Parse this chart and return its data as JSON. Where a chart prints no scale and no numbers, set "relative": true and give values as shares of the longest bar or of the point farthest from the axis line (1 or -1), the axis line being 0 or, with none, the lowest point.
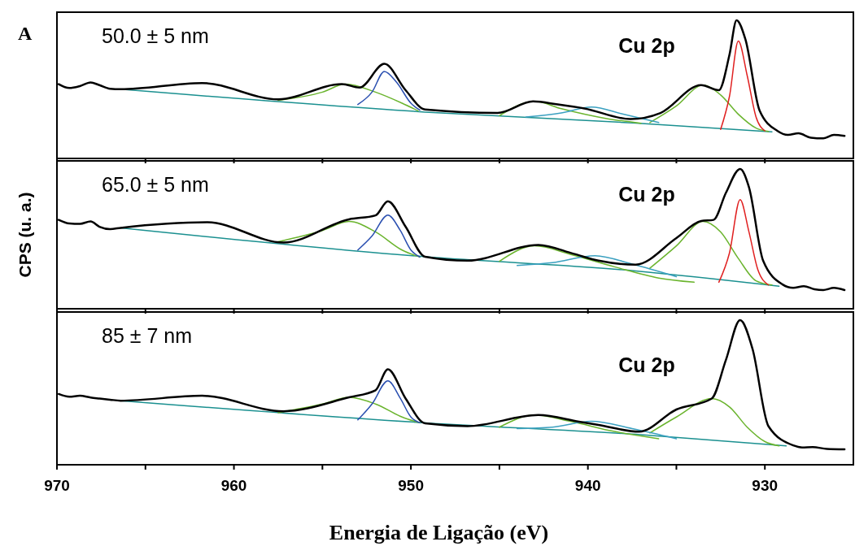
{
  "chart_data": [
    {
      "type": "line",
      "title": "A",
      "relative": true,
      "xlim": [
        970,
        925
      ],
      "xticks": [
        {
          "value": 970,
          "label": null
        },
        {
          "value": 965,
          "label": null
        },
        {
          "value": 960,
          "label": null
        },
        {
          "value": 955,
          "label": null
        },
        {
          "value": 950,
          "label": null
        },
        {
          "value": 945,
          "label": null
        },
        {
          "value": 940,
          "label": null
        },
        {
          "value": 935,
          "label": null
        },
        {
          "value": 930,
          "label": null
        }
      ],
      "tick_labels": false,
      "annotations": [
        "50.0 ± 5 nm",
        "Cu 2p"
      ],
      "series": [
        {
          "color": "#1b9090",
          "x": [
            966.4,
            949.2,
            937.3,
            929.6
          ],
          "values": [
            0.501,
            0.336,
            0.256,
            0.193
          ]
        },
        {
          "color": "#6ab42d",
          "x": [
            957.5,
            955,
            953.7,
            952,
            950.5,
            949.6
          ],
          "values": [
            0.42,
            0.48,
            0.538,
            0.48,
            0.4,
            0.345
          ]
        },
        {
          "color": "#6ab42d",
          "x": [
            945,
            943,
            941.5,
            939,
            937
          ],
          "values": [
            0.31,
            0.413,
            0.36,
            0.29,
            0.255
          ]
        },
        {
          "color": "#6ab42d",
          "x": [
            936.5,
            935,
            933.5,
            932.5,
            931.5,
            930.5,
            929.8
          ],
          "values": [
            0.26,
            0.38,
            0.531,
            0.46,
            0.32,
            0.22,
            0.195
          ]
        },
        {
          "color": "#2a4fb0",
          "x": [
            953,
            952.2,
            951.5,
            950.8,
            950,
            949.5
          ],
          "values": [
            0.39,
            0.48,
            0.63,
            0.55,
            0.4,
            0.35
          ]
        },
        {
          "color": "#3aa0c0",
          "x": [
            943.5,
            941.5,
            939.8,
            938,
            936
          ],
          "values": [
            0.3,
            0.33,
            0.372,
            0.32,
            0.26
          ]
        },
        {
          "color": "#e02020",
          "x": [
            932.5,
            932,
            931.5,
            931,
            930.5,
            930
          ],
          "values": [
            0.21,
            0.45,
            0.85,
            0.6,
            0.3,
            0.2
          ]
        },
        {
          "color": "#000000",
          "x": [
            969.9,
            969.3,
            968.7,
            968.1,
            967.6,
            967,
            966.4,
            961.8,
            957.5,
            953.9,
            952.9,
            951.5,
            950.3,
            949.2,
            945.1,
            943.1,
            941.7,
            940.2,
            937.6,
            935.9,
            933.6,
            932.6,
            932,
            931.6,
            931.1,
            930.3,
            929.3,
            928.7,
            928.1,
            927.4,
            926.7,
            926.1,
            925.5
          ],
          "values": [
            0.538,
            0.51,
            0.524,
            0.55,
            0.531,
            0.505,
            0.501,
            0.546,
            0.428,
            0.538,
            0.513,
            0.685,
            0.494,
            0.354,
            0.329,
            0.413,
            0.391,
            0.362,
            0.285,
            0.329,
            0.531,
            0.494,
            0.751,
            1,
            0.862,
            0.347,
            0.2,
            0.17,
            0.182,
            0.15,
            0.145,
            0.17,
            0.163
          ]
        }
      ]
    },
    {
      "type": "line",
      "relative": true,
      "ylabel": "CPS (u. a.)",
      "xlim": [
        970,
        925
      ],
      "xticks": [
        {
          "value": 970,
          "label": null
        },
        {
          "value": 965,
          "label": null
        },
        {
          "value": 960,
          "label": null
        },
        {
          "value": 955,
          "label": null
        },
        {
          "value": 950,
          "label": null
        },
        {
          "value": 945,
          "label": null
        },
        {
          "value": 940,
          "label": null
        },
        {
          "value": 935,
          "label": null
        },
        {
          "value": 930,
          "label": null
        }
      ],
      "tick_labels": false,
      "annotations": [
        "65.0 ± 5 nm",
        "Cu 2p"
      ],
      "series": [
        {
          "color": "#1b9090",
          "x": [
            966.4,
            949.2,
            937.3,
            929.2
          ],
          "values": [
            0.579,
            0.372,
            0.271,
            0.162
          ]
        },
        {
          "color": "#6ab42d",
          "x": [
            957.5,
            955,
            953.5,
            952,
            950.5,
            949.5
          ],
          "values": [
            0.48,
            0.56,
            0.625,
            0.55,
            0.42,
            0.37
          ]
        },
        {
          "color": "#6ab42d",
          "x": [
            945,
            943,
            941,
            938.5,
            936,
            934
          ],
          "values": [
            0.34,
            0.45,
            0.39,
            0.3,
            0.22,
            0.19
          ]
        },
        {
          "color": "#6ab42d",
          "x": [
            936.5,
            935,
            933.5,
            932.5,
            931.5,
            930.5,
            929.6
          ],
          "values": [
            0.29,
            0.45,
            0.625,
            0.55,
            0.36,
            0.2,
            0.17
          ]
        },
        {
          "color": "#2a4fb0",
          "x": [
            953,
            952.2,
            951.3,
            950.6,
            950,
            949.5
          ],
          "values": [
            0.42,
            0.52,
            0.67,
            0.56,
            0.42,
            0.37
          ]
        },
        {
          "color": "#3aa0c0",
          "x": [
            944,
            942,
            939.6,
            937.5,
            935
          ],
          "values": [
            0.31,
            0.33,
            0.38,
            0.32,
            0.23
          ]
        },
        {
          "color": "#e02020",
          "x": [
            932.6,
            932,
            931.4,
            930.9,
            930.4,
            929.8
          ],
          "values": [
            0.19,
            0.4,
            0.78,
            0.55,
            0.28,
            0.17
          ]
        },
        {
          "color": "#000000",
          "x": [
            969.9,
            969.3,
            968.7,
            968.1,
            967.6,
            967,
            966.4,
            961.5,
            957.2,
            953.5,
            952,
            951.3,
            950.3,
            949.2,
            946.8,
            942.8,
            940.8,
            939.4,
            937.3,
            935,
            933.6,
            932.9,
            932.2,
            931.4,
            930.9,
            930.1,
            929,
            928.4,
            927.8,
            927.2,
            926.7,
            926.1,
            925.5
          ],
          "values": [
            0.636,
            0.61,
            0.607,
            0.625,
            0.587,
            0.57,
            0.579,
            0.619,
            0.474,
            0.64,
            0.668,
            0.769,
            0.587,
            0.372,
            0.344,
            0.457,
            0.393,
            0.344,
            0.316,
            0.506,
            0.628,
            0.636,
            0.83,
            1,
            0.87,
            0.344,
            0.174,
            0.15,
            0.162,
            0.14,
            0.134,
            0.15,
            0.134
          ]
        }
      ]
    },
    {
      "type": "line",
      "relative": true,
      "xlabel": "Energia de Ligação (eV)",
      "xlim": [
        970,
        925
      ],
      "xticks": [
        970,
        {
          "value": 965,
          "label": null
        },
        960,
        {
          "value": 955,
          "label": null
        },
        950,
        {
          "value": 945,
          "label": null
        },
        940,
        {
          "value": 935,
          "label": null
        },
        930
      ],
      "tick_labels": "x",
      "annotations": [
        "85 ± 7 nm",
        "Cu 2p"
      ],
      "series": [
        {
          "color": "#1b9090",
          "x": [
            966.4,
            949.2,
            937.3,
            928.8
          ],
          "values": [
            0.443,
            0.29,
            0.21,
            0.13
          ]
        },
        {
          "color": "#6ab42d",
          "x": [
            957.5,
            955,
            953.5,
            952,
            950.5,
            949.5
          ],
          "values": [
            0.36,
            0.42,
            0.466,
            0.42,
            0.33,
            0.29
          ]
        },
        {
          "color": "#6ab42d",
          "x": [
            945,
            943,
            941,
            938.5,
            936
          ],
          "values": [
            0.26,
            0.344,
            0.3,
            0.23,
            0.18
          ]
        },
        {
          "color": "#6ab42d",
          "x": [
            936.5,
            935,
            933,
            932,
            931,
            930,
            929.2
          ],
          "values": [
            0.22,
            0.33,
            0.458,
            0.4,
            0.26,
            0.16,
            0.13
          ]
        },
        {
          "color": "#2a4fb0",
          "x": [
            953,
            952.2,
            951.3,
            950.6,
            950,
            949.5
          ],
          "values": [
            0.31,
            0.42,
            0.58,
            0.46,
            0.33,
            0.29
          ]
        },
        {
          "color": "#3aa0c0",
          "x": [
            944,
            942,
            939.8,
            937.5,
            935
          ],
          "values": [
            0.25,
            0.26,
            0.3,
            0.25,
            0.18
          ]
        },
        {
          "color": "#000000",
          "x": [
            969.9,
            969.3,
            968.7,
            968.1,
            967.6,
            967,
            966.4,
            961.8,
            957.2,
            953.5,
            952,
            951.3,
            950.3,
            949.2,
            946.8,
            942.8,
            940.5,
            939.4,
            937.1,
            935,
            933,
            932.2,
            931.4,
            930.7,
            929.8,
            928.4,
            927.9,
            927.3,
            926.5,
            925.5
          ],
          "values": [
            0.489,
            0.47,
            0.477,
            0.465,
            0.458,
            0.45,
            0.443,
            0.477,
            0.37,
            0.466,
            0.515,
            0.66,
            0.458,
            0.286,
            0.267,
            0.344,
            0.298,
            0.275,
            0.229,
            0.382,
            0.458,
            0.725,
            1,
            0.802,
            0.267,
            0.134,
            0.12,
            0.122,
            0.11,
            0.107
          ]
        }
      ]
    }
  ]
}
